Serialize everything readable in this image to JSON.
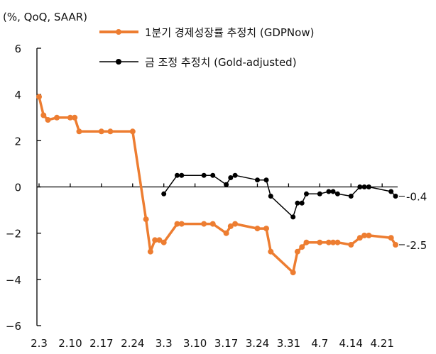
{
  "chart_data": {
    "type": "line",
    "unit_label": "(%, QoQ, SAAR)",
    "ylim": [
      -6,
      6
    ],
    "y_ticks": [
      6,
      4,
      2,
      0,
      -2,
      -4,
      -6
    ],
    "x_tick_labels": [
      "2.3",
      "2.10",
      "2.17",
      "2.24",
      "3.3",
      "3.10",
      "3.17",
      "3.24",
      "3.31",
      "4.7",
      "4.14",
      "4.21"
    ],
    "legend_position": "top",
    "grid": false,
    "series": [
      {
        "name": "1분기 경제성장률 추정치 (GDPNow)",
        "color": "#ED7D31",
        "end_label": "-2.5",
        "points": [
          [
            "2.3",
            3.9
          ],
          [
            "2.4",
            3.1
          ],
          [
            "2.5",
            2.9
          ],
          [
            "2.7",
            3.0
          ],
          [
            "2.10",
            3.0
          ],
          [
            "2.11",
            3.0
          ],
          [
            "2.12",
            2.4
          ],
          [
            "2.17",
            2.4
          ],
          [
            "2.19",
            2.4
          ],
          [
            "2.24",
            2.4
          ],
          [
            "2.27",
            -1.4
          ],
          [
            "2.28",
            -2.8
          ],
          [
            "3.1",
            -2.3
          ],
          [
            "3.2",
            -2.3
          ],
          [
            "3.3",
            -2.4
          ],
          [
            "3.6",
            -1.6
          ],
          [
            "3.7",
            -1.6
          ],
          [
            "3.12",
            -1.6
          ],
          [
            "3.14",
            -1.6
          ],
          [
            "3.17",
            -2.0
          ],
          [
            "3.18",
            -1.7
          ],
          [
            "3.19",
            -1.6
          ],
          [
            "3.24",
            -1.8
          ],
          [
            "3.26",
            -1.8
          ],
          [
            "3.27",
            -2.8
          ],
          [
            "4.1",
            -3.7
          ],
          [
            "4.2",
            -2.8
          ],
          [
            "4.3",
            -2.6
          ],
          [
            "4.4",
            -2.4
          ],
          [
            "4.7",
            -2.4
          ],
          [
            "4.9",
            -2.4
          ],
          [
            "4.10",
            -2.4
          ],
          [
            "4.11",
            -2.4
          ],
          [
            "4.14",
            -2.5
          ],
          [
            "4.16",
            -2.2
          ],
          [
            "4.17",
            -2.1
          ],
          [
            "4.18",
            -2.1
          ],
          [
            "4.23",
            -2.2
          ],
          [
            "4.24",
            -2.5
          ]
        ]
      },
      {
        "name": "금 조정 추정치 (Gold-adjusted)",
        "color": "#000000",
        "end_label": "-0.4",
        "points": [
          [
            "3.3",
            -0.3
          ],
          [
            "3.6",
            0.5
          ],
          [
            "3.7",
            0.5
          ],
          [
            "3.12",
            0.5
          ],
          [
            "3.14",
            0.5
          ],
          [
            "3.17",
            0.1
          ],
          [
            "3.18",
            0.4
          ],
          [
            "3.19",
            0.5
          ],
          [
            "3.24",
            0.3
          ],
          [
            "3.26",
            0.3
          ],
          [
            "3.27",
            -0.4
          ],
          [
            "4.1",
            -1.3
          ],
          [
            "4.2",
            -0.7
          ],
          [
            "4.3",
            -0.7
          ],
          [
            "4.4",
            -0.3
          ],
          [
            "4.7",
            -0.3
          ],
          [
            "4.9",
            -0.2
          ],
          [
            "4.10",
            -0.2
          ],
          [
            "4.11",
            -0.3
          ],
          [
            "4.14",
            -0.4
          ],
          [
            "4.16",
            0.0
          ],
          [
            "4.17",
            0.0
          ],
          [
            "4.18",
            0.0
          ],
          [
            "4.23",
            -0.2
          ],
          [
            "4.24",
            -0.4
          ]
        ]
      }
    ]
  }
}
